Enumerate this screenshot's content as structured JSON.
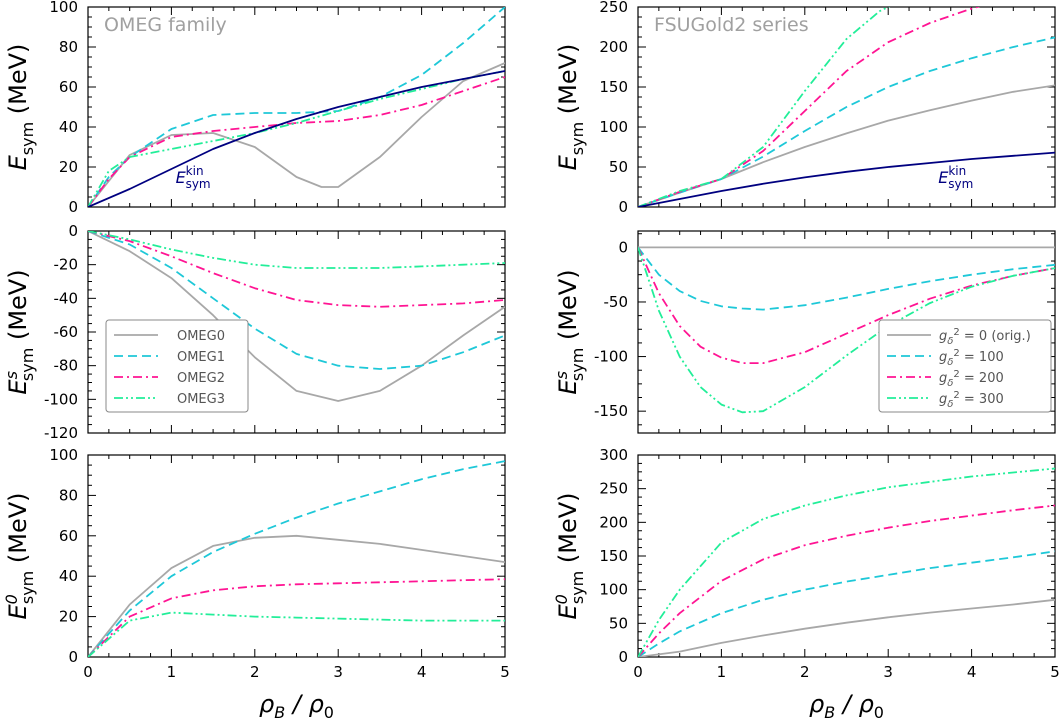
{
  "colors": {
    "gray": "#a8a8a8",
    "cyan": "#1ec8d8",
    "magenta": "#ff1493",
    "green": "#22ee99",
    "navy": "#000080",
    "title_gray": "#a0a0a0"
  },
  "shared": {
    "xlabel_main": "ρ",
    "xlabel_sub": "B",
    "xlabel_sep": " / ρ",
    "xlabel_sub2": "0",
    "ylabel_unit": "(MeV)",
    "ylabel_main": "E",
    "ylabel_sub": "sym"
  },
  "chart_data": [
    {
      "id": "p0",
      "type": "line",
      "col": 0,
      "row": 0,
      "title": "OMEG family",
      "ylabel_sup": "",
      "xlim": [
        0,
        5
      ],
      "ylim": [
        0,
        100
      ],
      "xticks": [
        0,
        1,
        2,
        3,
        4,
        5
      ],
      "yticks": [
        0,
        20,
        40,
        60,
        80,
        100
      ],
      "show_xticklabels": false,
      "annotation": {
        "main": "E",
        "sup": "kin",
        "sub": "sym",
        "x": 1.05,
        "y": 12
      },
      "series": [
        {
          "name": "OMEG0",
          "color": "gray",
          "dash": "solid",
          "x": [
            0,
            0.5,
            1,
            1.5,
            2,
            2.5,
            2.8,
            3,
            3.5,
            4,
            4.5,
            5
          ],
          "y": [
            0,
            26,
            36,
            37,
            30,
            15,
            10,
            10,
            25,
            45,
            63,
            72
          ]
        },
        {
          "name": "OMEG1",
          "color": "cyan",
          "dash": "dashed",
          "x": [
            0,
            0.25,
            0.5,
            1,
            1.5,
            2,
            2.5,
            3,
            3.5,
            4,
            4.5,
            5
          ],
          "y": [
            0,
            15,
            25,
            39,
            46,
            47,
            47,
            48,
            55,
            66,
            82,
            100
          ]
        },
        {
          "name": "OMEG2",
          "color": "magenta",
          "dash": "dashdot",
          "x": [
            0,
            0.25,
            0.5,
            1,
            1.5,
            2,
            2.5,
            3,
            3.5,
            4,
            4.5,
            5
          ],
          "y": [
            0,
            14,
            25,
            35,
            38,
            40,
            42,
            43,
            46,
            51,
            58,
            65
          ]
        },
        {
          "name": "OMEG3",
          "color": "green",
          "dash": "dashdotdot",
          "x": [
            0,
            0.25,
            0.5,
            1,
            1.5,
            2,
            2.5,
            3,
            3.5,
            4,
            4.5,
            5
          ],
          "y": [
            0,
            18,
            25,
            29,
            33,
            37,
            42,
            48,
            54,
            59,
            64,
            68
          ]
        },
        {
          "name": "E_sym_kin",
          "color": "navy",
          "dash": "solid",
          "x": [
            0,
            0.5,
            1,
            1.5,
            2,
            2.5,
            3,
            3.5,
            4,
            4.5,
            5
          ],
          "y": [
            0,
            9,
            19,
            29,
            37,
            44,
            50,
            55,
            60,
            64,
            68
          ]
        }
      ]
    },
    {
      "id": "p1",
      "type": "line",
      "col": 0,
      "row": 1,
      "title": "",
      "ylabel_sup": "s",
      "xlim": [
        0,
        5
      ],
      "ylim": [
        -120,
        0
      ],
      "xticks": [
        0,
        1,
        2,
        3,
        4,
        5
      ],
      "yticks": [
        -120,
        -100,
        -80,
        -60,
        -40,
        -20,
        0
      ],
      "show_xticklabels": false,
      "legend": {
        "position": "lower-left",
        "entries": [
          "OMEG0",
          "OMEG1",
          "OMEG2",
          "OMEG3"
        ]
      },
      "series": [
        {
          "name": "OMEG0",
          "color": "gray",
          "dash": "solid",
          "x": [
            0,
            0.5,
            1,
            1.5,
            2,
            2.5,
            3,
            3.5,
            4,
            4.5,
            5
          ],
          "y": [
            0,
            -12,
            -28,
            -50,
            -75,
            -95,
            -101,
            -95,
            -80,
            -62,
            -45
          ]
        },
        {
          "name": "OMEG1",
          "color": "cyan",
          "dash": "dashed",
          "x": [
            0,
            0.5,
            1,
            1.5,
            2,
            2.5,
            3,
            3.5,
            4,
            4.5,
            5
          ],
          "y": [
            0,
            -8,
            -22,
            -40,
            -58,
            -73,
            -80,
            -82,
            -80,
            -72,
            -62
          ]
        },
        {
          "name": "OMEG2",
          "color": "magenta",
          "dash": "dashdot",
          "x": [
            0,
            0.5,
            1,
            1.5,
            2,
            2.5,
            3,
            3.5,
            4,
            4.5,
            5
          ],
          "y": [
            0,
            -6,
            -15,
            -25,
            -34,
            -41,
            -44,
            -45,
            -44,
            -43,
            -41
          ]
        },
        {
          "name": "OMEG3",
          "color": "green",
          "dash": "dashdotdot",
          "x": [
            0,
            0.5,
            1,
            1.5,
            2,
            2.5,
            3,
            3.5,
            4,
            4.5,
            5
          ],
          "y": [
            0,
            -5,
            -11,
            -16,
            -20,
            -22,
            -22,
            -22,
            -21,
            -20,
            -19
          ]
        }
      ]
    },
    {
      "id": "p2",
      "type": "line",
      "col": 0,
      "row": 2,
      "title": "",
      "ylabel_sup": "0",
      "xlim": [
        0,
        5
      ],
      "ylim": [
        0,
        100
      ],
      "xticks": [
        0,
        1,
        2,
        3,
        4,
        5
      ],
      "yticks": [
        0,
        20,
        40,
        60,
        80,
        100
      ],
      "show_xticklabels": true,
      "series": [
        {
          "name": "OMEG0",
          "color": "gray",
          "dash": "solid",
          "x": [
            0,
            0.5,
            1,
            1.5,
            2,
            2.5,
            3,
            3.5,
            4,
            4.5,
            5
          ],
          "y": [
            0,
            26,
            44,
            55,
            59,
            60,
            58,
            56,
            53,
            50,
            47
          ]
        },
        {
          "name": "OMEG1",
          "color": "cyan",
          "dash": "dashed",
          "x": [
            0,
            0.5,
            1,
            1.5,
            2,
            2.5,
            3,
            3.5,
            4,
            4.5,
            5
          ],
          "y": [
            0,
            23,
            40,
            52,
            61,
            69,
            76,
            82,
            88,
            93,
            97
          ]
        },
        {
          "name": "OMEG2",
          "color": "magenta",
          "dash": "dashdot",
          "x": [
            0,
            0.5,
            1,
            1.5,
            2,
            2.5,
            3,
            3.5,
            4,
            4.5,
            5
          ],
          "y": [
            0,
            20,
            29,
            33,
            35,
            36,
            36.5,
            37,
            37.5,
            38,
            38.5
          ]
        },
        {
          "name": "OMEG3",
          "color": "green",
          "dash": "dashdotdot",
          "x": [
            0,
            0.5,
            1,
            1.5,
            2,
            2.5,
            3,
            3.5,
            4,
            4.5,
            5
          ],
          "y": [
            0,
            18,
            22,
            21,
            20,
            19.5,
            19,
            18.5,
            18,
            18,
            18
          ]
        }
      ]
    },
    {
      "id": "p3",
      "type": "line",
      "col": 1,
      "row": 0,
      "title": "FSUGold2 series",
      "ylabel_sup": "",
      "xlim": [
        0,
        5
      ],
      "ylim": [
        0,
        250
      ],
      "xticks": [
        0,
        1,
        2,
        3,
        4,
        5
      ],
      "yticks": [
        0,
        50,
        100,
        150,
        200,
        250
      ],
      "show_xticklabels": false,
      "annotation": {
        "main": "E",
        "sup": "kin",
        "sub": "sym",
        "x": 3.6,
        "y": 30
      },
      "series": [
        {
          "name": "g=0 (orig.)",
          "color": "gray",
          "dash": "solid",
          "x": [
            0,
            0.5,
            1,
            1.5,
            2,
            2.5,
            3,
            3.5,
            4,
            4.5,
            5
          ],
          "y": [
            0,
            18,
            35,
            56,
            75,
            92,
            108,
            121,
            133,
            144,
            152
          ]
        },
        {
          "name": "g=100",
          "color": "cyan",
          "dash": "dashed",
          "x": [
            0,
            0.5,
            1,
            1.5,
            2,
            2.5,
            3,
            3.5,
            4,
            4.5,
            5
          ],
          "y": [
            0,
            18,
            35,
            63,
            95,
            125,
            150,
            170,
            186,
            200,
            212
          ]
        },
        {
          "name": "g=200",
          "color": "magenta",
          "dash": "dashdot",
          "x": [
            0,
            0.5,
            1,
            1.5,
            2,
            2.5,
            3,
            3.5,
            4,
            4.23
          ],
          "y": [
            0,
            19,
            35,
            70,
            120,
            170,
            206,
            230,
            248,
            255
          ]
        },
        {
          "name": "g=300",
          "color": "green",
          "dash": "dashdotdot",
          "x": [
            0,
            0.5,
            1,
            1.5,
            2,
            2.5,
            2.9,
            3.1
          ],
          "y": [
            0,
            20,
            35,
            75,
            145,
            210,
            245,
            255
          ]
        },
        {
          "name": "E_sym_kin",
          "color": "navy",
          "dash": "solid",
          "x": [
            0,
            0.5,
            1,
            1.5,
            2,
            2.5,
            3,
            3.5,
            4,
            4.5,
            5
          ],
          "y": [
            0,
            10,
            20,
            29,
            37,
            44,
            50,
            55,
            60,
            64,
            68
          ]
        }
      ]
    },
    {
      "id": "p4",
      "type": "line",
      "col": 1,
      "row": 1,
      "title": "",
      "ylabel_sup": "s",
      "xlim": [
        0,
        5
      ],
      "ylim": [
        -170,
        15
      ],
      "xticks": [
        0,
        1,
        2,
        3,
        4,
        5
      ],
      "yticks": [
        -150,
        -100,
        -50,
        0
      ],
      "show_xticklabels": false,
      "legend": {
        "position": "lower-right",
        "entries": [
          "g",
          "2",
          " = 0 (orig.)",
          " = 100",
          " = 200",
          " = 300"
        ],
        "symbol": "δ"
      },
      "series": [
        {
          "name": "g=0 (orig.)",
          "color": "gray",
          "dash": "solid",
          "x": [
            0,
            5
          ],
          "y": [
            0,
            0
          ]
        },
        {
          "name": "g=100",
          "color": "cyan",
          "dash": "dashed",
          "x": [
            0,
            0.25,
            0.5,
            0.75,
            1,
            1.25,
            1.5,
            2,
            2.5,
            3,
            3.5,
            4,
            4.5,
            5
          ],
          "y": [
            0,
            -25,
            -40,
            -49,
            -54,
            -56,
            -57,
            -53,
            -46,
            -38,
            -31,
            -25,
            -20,
            -16
          ]
        },
        {
          "name": "g=200",
          "color": "magenta",
          "dash": "dashdot",
          "x": [
            0,
            0.25,
            0.5,
            0.75,
            1,
            1.25,
            1.5,
            2,
            2.5,
            3,
            3.5,
            4,
            4.5,
            5
          ],
          "y": [
            0,
            -42,
            -72,
            -91,
            -101,
            -106,
            -106,
            -96,
            -79,
            -62,
            -47,
            -35,
            -26,
            -19
          ]
        },
        {
          "name": "g=300",
          "color": "green",
          "dash": "dashdotdot",
          "x": [
            0,
            0.25,
            0.5,
            0.75,
            1,
            1.25,
            1.5,
            2,
            2.5,
            3,
            3.5,
            4,
            4.5,
            5
          ],
          "y": [
            0,
            -58,
            -100,
            -128,
            -144,
            -151,
            -150,
            -128,
            -99,
            -72,
            -51,
            -36,
            -26,
            -19
          ]
        }
      ]
    },
    {
      "id": "p5",
      "type": "line",
      "col": 1,
      "row": 2,
      "title": "",
      "ylabel_sup": "0",
      "xlim": [
        0,
        5
      ],
      "ylim": [
        0,
        300
      ],
      "xticks": [
        0,
        1,
        2,
        3,
        4,
        5
      ],
      "yticks": [
        0,
        50,
        100,
        150,
        200,
        250,
        300
      ],
      "show_xticklabels": true,
      "series": [
        {
          "name": "g=0 (orig.)",
          "color": "gray",
          "dash": "solid",
          "x": [
            0,
            0.5,
            1,
            1.5,
            2,
            2.5,
            3,
            3.5,
            4,
            4.5,
            5
          ],
          "y": [
            0,
            8,
            21,
            32,
            42,
            51,
            59,
            66,
            72,
            78,
            85
          ]
        },
        {
          "name": "g=100",
          "color": "cyan",
          "dash": "dashed",
          "x": [
            0,
            0.25,
            0.5,
            1,
            1.5,
            2,
            2.5,
            3,
            3.5,
            4,
            4.5,
            5
          ],
          "y": [
            0,
            20,
            38,
            65,
            85,
            100,
            112,
            122,
            132,
            140,
            148,
            157
          ]
        },
        {
          "name": "g=200",
          "color": "magenta",
          "dash": "dashdot",
          "x": [
            0,
            0.25,
            0.5,
            1,
            1.5,
            2,
            2.5,
            3,
            3.5,
            4,
            4.5,
            5
          ],
          "y": [
            0,
            35,
            65,
            113,
            145,
            166,
            180,
            192,
            202,
            210,
            218,
            225
          ]
        },
        {
          "name": "g=300",
          "color": "green",
          "dash": "dashdotdot",
          "x": [
            0,
            0.25,
            0.5,
            1,
            1.5,
            2,
            2.5,
            3,
            3.5,
            4,
            4.5,
            5
          ],
          "y": [
            0,
            55,
            100,
            170,
            205,
            225,
            240,
            252,
            260,
            268,
            274,
            280
          ]
        }
      ]
    }
  ]
}
